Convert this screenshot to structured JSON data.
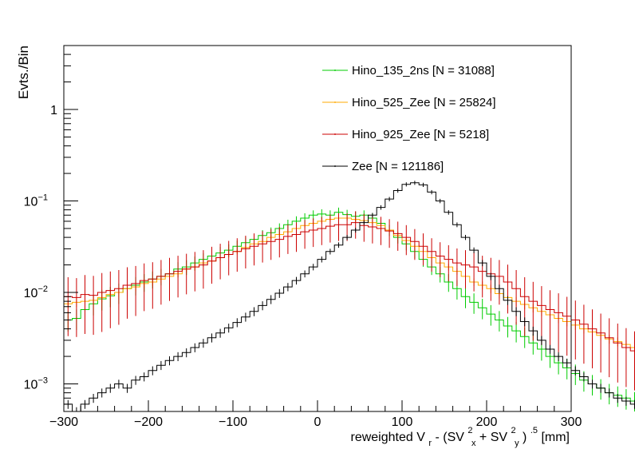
{
  "chart_data": {
    "type": "line",
    "style": "step-histogram",
    "title": "",
    "xlabel": "reweighted V",
    "xlabel_sub": "r",
    "xlabel_rest_a": "- (SV",
    "xlabel_sup_x": "2",
    "xlabel_sub_x": "x",
    "xlabel_rest_b": "+ SV",
    "xlabel_sup_y": "2",
    "xlabel_sub_y": "y",
    "xlabel_rest_c": ")",
    "xlabel_sup_end": ".5",
    "xlabel_unit": "[mm]",
    "ylabel": "Evts./Bin",
    "xlim": [
      -300,
      300
    ],
    "ylog": true,
    "ylim": [
      0.0005,
      5
    ],
    "bin_width": 10,
    "x_ticks": [
      -300,
      -200,
      -100,
      0,
      100,
      200,
      300
    ],
    "x_tick_labels": [
      "−300",
      "−200",
      "−100",
      "0",
      "100",
      "200",
      "300"
    ],
    "y_ticks": [
      {
        "value": 0.001,
        "base": "10",
        "exp": "−3"
      },
      {
        "value": 0.01,
        "base": "10",
        "exp": "−2"
      },
      {
        "value": 0.1,
        "base": "10",
        "exp": "−1"
      },
      {
        "value": 1,
        "base": "1",
        "exp": ""
      }
    ],
    "series": [
      {
        "name": "Hino_135_2ns",
        "label": "Hino_135_2ns [N = 31088]",
        "color": "#00cc00",
        "values": [
          0.005,
          0.0052,
          0.0065,
          0.0075,
          0.0085,
          0.0092,
          0.01,
          0.011,
          0.012,
          0.013,
          0.014,
          0.015,
          0.016,
          0.018,
          0.019,
          0.021,
          0.023,
          0.025,
          0.027,
          0.029,
          0.032,
          0.035,
          0.038,
          0.042,
          0.045,
          0.05,
          0.055,
          0.06,
          0.065,
          0.07,
          0.072,
          0.07,
          0.075,
          0.071,
          0.068,
          0.07,
          0.065,
          0.057,
          0.048,
          0.04,
          0.034,
          0.028,
          0.023,
          0.019,
          0.016,
          0.013,
          0.011,
          0.009,
          0.0078,
          0.0068,
          0.0058,
          0.005,
          0.0043,
          0.0038,
          0.0033,
          0.0028,
          0.0024,
          0.002,
          0.0017,
          0.0015,
          0.0013,
          0.0011,
          0.001,
          0.0009,
          0.0008,
          0.00075,
          0.0007,
          0.00065,
          0.0007,
          0.0006,
          0.0008,
          0.0007,
          0.0009,
          0.00075,
          0.0007,
          0.0007,
          0.0007,
          0.0007,
          0.0007,
          0.0007
        ]
      },
      {
        "name": "Hino_525_Zee",
        "label": "Hino_525_Zee [N = 25824]",
        "color": "#ffaa00",
        "values": [
          0.0075,
          0.0078,
          0.008,
          0.0082,
          0.0088,
          0.0095,
          0.01,
          0.011,
          0.0115,
          0.0125,
          0.013,
          0.014,
          0.015,
          0.016,
          0.018,
          0.019,
          0.021,
          0.022,
          0.024,
          0.026,
          0.028,
          0.031,
          0.034,
          0.036,
          0.04,
          0.043,
          0.046,
          0.05,
          0.054,
          0.057,
          0.06,
          0.063,
          0.065,
          0.065,
          0.063,
          0.061,
          0.058,
          0.054,
          0.048,
          0.042,
          0.037,
          0.032,
          0.028,
          0.024,
          0.021,
          0.019,
          0.017,
          0.015,
          0.013,
          0.012,
          0.011,
          0.0097,
          0.0088,
          0.008,
          0.0074,
          0.0068,
          0.0062,
          0.0057,
          0.0052,
          0.0048,
          0.0044,
          0.004,
          0.0037,
          0.0034,
          0.0031,
          0.0029,
          0.0027,
          0.0025,
          0.0023,
          0.0021,
          0.002,
          0.0019,
          0.0018,
          0.0017,
          0.0016,
          0.0016,
          0.0015,
          0.0017,
          0.0016,
          0.0017
        ]
      },
      {
        "name": "Hino_925_Zee",
        "label": "Hino_925_Zee [N = 5218]",
        "color": "#cc0000",
        "values": [
          0.009,
          0.0088,
          0.0095,
          0.0093,
          0.01,
          0.0105,
          0.011,
          0.012,
          0.0125,
          0.0135,
          0.014,
          0.015,
          0.016,
          0.017,
          0.018,
          0.019,
          0.02,
          0.022,
          0.024,
          0.026,
          0.028,
          0.03,
          0.032,
          0.034,
          0.036,
          0.038,
          0.041,
          0.043,
          0.046,
          0.048,
          0.05,
          0.053,
          0.055,
          0.055,
          0.058,
          0.054,
          0.052,
          0.05,
          0.047,
          0.044,
          0.04,
          0.036,
          0.032,
          0.028,
          0.025,
          0.023,
          0.021,
          0.02,
          0.019,
          0.017,
          0.016,
          0.015,
          0.013,
          0.011,
          0.009,
          0.008,
          0.0072,
          0.0065,
          0.006,
          0.0055,
          0.005,
          0.0045,
          0.004,
          0.0036,
          0.0032,
          0.0028,
          0.0025,
          0.0023,
          0.0021,
          0.002,
          0.0019,
          0.0018,
          0.0019,
          0.002,
          0.0018,
          0.0017,
          0.0016,
          0.0015,
          0.0014,
          0.0014
        ]
      },
      {
        "name": "Zee",
        "label": "Zee [N = 121186]",
        "color": "#000000",
        "values": [
          0.0006,
          0.0005,
          0.0006,
          0.0007,
          0.0008,
          0.0009,
          0.001,
          0.0009,
          0.0011,
          0.0012,
          0.0014,
          0.0016,
          0.0018,
          0.002,
          0.0022,
          0.0025,
          0.0028,
          0.0032,
          0.0036,
          0.0041,
          0.0047,
          0.0054,
          0.0062,
          0.0072,
          0.0084,
          0.0098,
          0.0115,
          0.0135,
          0.016,
          0.019,
          0.023,
          0.028,
          0.033,
          0.04,
          0.048,
          0.058,
          0.07,
          0.085,
          0.105,
          0.13,
          0.152,
          0.158,
          0.15,
          0.125,
          0.1,
          0.075,
          0.055,
          0.04,
          0.029,
          0.021,
          0.015,
          0.011,
          0.0082,
          0.0062,
          0.0048,
          0.0038,
          0.003,
          0.0024,
          0.002,
          0.0017,
          0.0014,
          0.0012,
          0.001,
          0.0009,
          0.0008,
          0.0007,
          0.00065,
          0.0006,
          0.00058,
          0.00055,
          0.00053,
          0.0005,
          0.0005,
          0.0005,
          0.0005,
          0.0005,
          0.0005,
          0.0005,
          0.0005,
          0.0005
        ]
      }
    ]
  }
}
